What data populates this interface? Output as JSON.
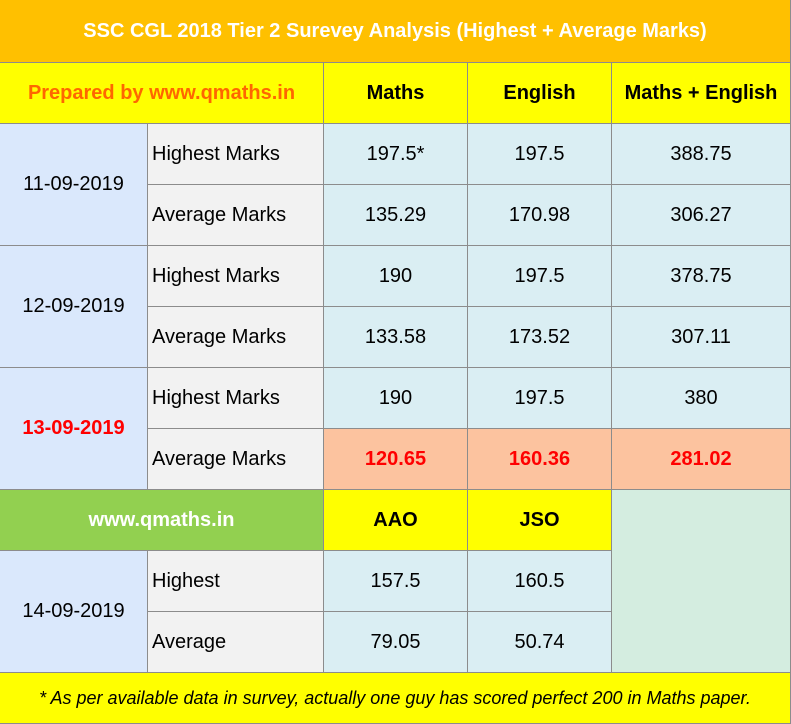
{
  "title": "SSC CGL 2018 Tier 2 Surevey Analysis (Highest + Average Marks)",
  "header": {
    "prepared_by": "Prepared by www.qmaths.in",
    "col_maths": "Maths",
    "col_english": "English",
    "col_total": "Maths + English"
  },
  "groups": [
    {
      "date": "11-09-2019",
      "highest": {
        "label": "Highest Marks",
        "maths": "197.5*",
        "english": "197.5",
        "total": "388.75"
      },
      "average": {
        "label": "Average Marks",
        "maths": "135.29",
        "english": "170.98",
        "total": "306.27"
      }
    },
    {
      "date": "12-09-2019",
      "highest": {
        "label": "Highest Marks",
        "maths": "190",
        "english": "197.5",
        "total": "378.75"
      },
      "average": {
        "label": "Average Marks",
        "maths": "133.58",
        "english": "173.52",
        "total": "307.11"
      }
    },
    {
      "date": "13-09-2019",
      "highest": {
        "label": "Highest Marks",
        "maths": "190",
        "english": "197.5",
        "total": "380"
      },
      "average": {
        "label": "Average Marks",
        "maths": "120.65",
        "english": "160.36",
        "total": "281.02"
      }
    }
  ],
  "second_header": {
    "site": "www.qmaths.in",
    "col_aao": "AAO",
    "col_jso": "JSO"
  },
  "group4": {
    "date": "14-09-2019",
    "highest": {
      "label": "Highest",
      "aao": "157.5",
      "jso": "160.5"
    },
    "average": {
      "label": "Average",
      "aao": "79.05",
      "jso": "50.74"
    }
  },
  "footnote": "* As per available data in survey, actually one guy has scored perfect 200 in Maths paper."
}
